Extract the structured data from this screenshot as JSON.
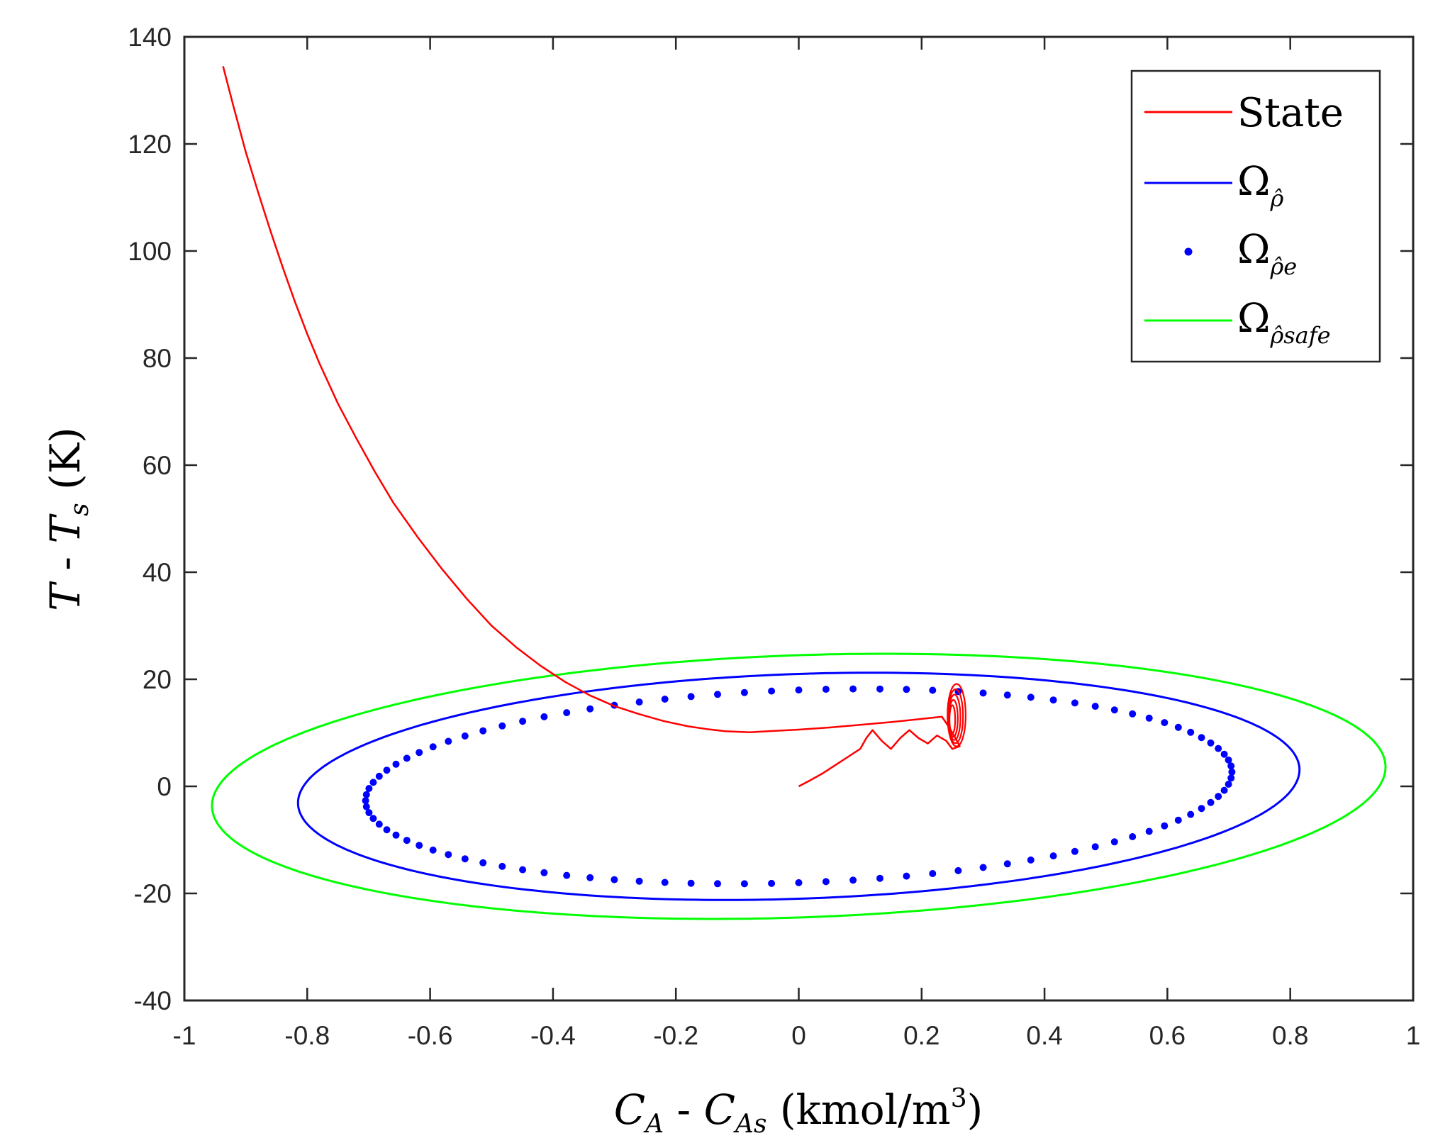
{
  "chart_data": {
    "type": "line",
    "title": "",
    "xlabel": "C_A - C_As (kmol/m^3)",
    "ylabel": "T - T_s (K)",
    "xlim": [
      -1,
      1
    ],
    "ylim": [
      -40,
      140
    ],
    "xticks": [
      -1,
      -0.8,
      -0.6,
      -0.4,
      -0.2,
      0,
      0.2,
      0.4,
      0.6,
      0.8,
      1
    ],
    "yticks": [
      -40,
      -20,
      0,
      20,
      40,
      60,
      80,
      100,
      120,
      140
    ],
    "x_tick_labels": [
      "-1",
      "-0.8",
      "-0.6",
      "-0.4",
      "-0.2",
      "0",
      "0.2",
      "0.4",
      "0.6",
      "0.8",
      "1"
    ],
    "y_tick_labels": [
      "-40",
      "-20",
      "0",
      "20",
      "40",
      "60",
      "80",
      "100",
      "120",
      "140"
    ],
    "legend_position": "top-right",
    "series": [
      {
        "name": "State",
        "style": "line",
        "color": "#ff0000",
        "x": [
          -0.937,
          -0.92,
          -0.9,
          -0.88,
          -0.86,
          -0.84,
          -0.82,
          -0.8,
          -0.78,
          -0.75,
          -0.72,
          -0.69,
          -0.66,
          -0.62,
          -0.58,
          -0.54,
          -0.5,
          -0.46,
          -0.42,
          -0.38,
          -0.34,
          -0.3,
          -0.26,
          -0.22,
          -0.18,
          -0.15,
          -0.12,
          -0.1,
          -0.08,
          -0.05,
          0.0,
          0.05,
          0.1,
          0.15,
          0.2,
          0.233,
          0.245,
          0.255,
          0.262,
          0.25,
          0.24,
          0.225,
          0.21,
          0.195,
          0.18,
          0.165,
          0.15,
          0.135,
          0.12,
          0.11,
          0.1,
          0.08,
          0.06,
          0.04,
          0.02,
          0.0
        ],
        "y": [
          134.5,
          127,
          118.5,
          111,
          103.8,
          97,
          90.5,
          84.5,
          79,
          71.5,
          65,
          58.8,
          53,
          46.5,
          40.5,
          35,
          30,
          26,
          22.5,
          19.5,
          17,
          15,
          13.5,
          12.2,
          11.2,
          10.7,
          10.3,
          10.2,
          10.1,
          10.3,
          10.6,
          11.0,
          11.5,
          12.0,
          12.6,
          13.0,
          11.0,
          9.0,
          7.5,
          7.0,
          8.5,
          9.5,
          8.0,
          9.0,
          10.5,
          9.0,
          7.0,
          8.5,
          10.5,
          9.0,
          7.0,
          5.5,
          4.0,
          2.5,
          1.2,
          0.0
        ],
        "oscillation_center": [
          0.25,
          12.5
        ]
      },
      {
        "name": "Ω_ρ̂",
        "style": "ellipse",
        "color": "#0000ff",
        "center": [
          0.0,
          0.0
        ],
        "semi_axis_x": 0.815,
        "semi_axis_y": 21.0,
        "tilt_dy_per_dx": 3.8
      },
      {
        "name": "Ω_ρ̂e",
        "style": "dotted",
        "color": "#0000ff",
        "center": [
          0.0,
          0.0
        ],
        "semi_axis_x": 0.705,
        "semi_axis_y": 18.0,
        "tilt_dy_per_dx": 3.8,
        "num_points": 100
      },
      {
        "name": "Ω_ρ̂safe",
        "style": "ellipse",
        "color": "#00ff00",
        "center": [
          0.0,
          0.0
        ],
        "semi_axis_x": 0.955,
        "semi_axis_y": 24.5,
        "tilt_dy_per_dx": 3.8
      }
    ],
    "legend": {
      "entries": [
        {
          "main": "State",
          "sub": ""
        },
        {
          "main": "Ω",
          "sub": "ρ̂"
        },
        {
          "main": "Ω",
          "sub": "ρ̂e"
        },
        {
          "main": "Ω",
          "sub": "ρ̂safe"
        }
      ]
    },
    "axis_title_parts": {
      "x": {
        "v1": "C",
        "s1": "A",
        "sep": " - ",
        "v2": "C",
        "s2": "As",
        "units": " (kmol/m",
        "sup": "3",
        "close": ")"
      },
      "y": {
        "v1": "T",
        "sep": " - ",
        "v2": "T",
        "s2": "s",
        "units": " (K)"
      }
    }
  }
}
